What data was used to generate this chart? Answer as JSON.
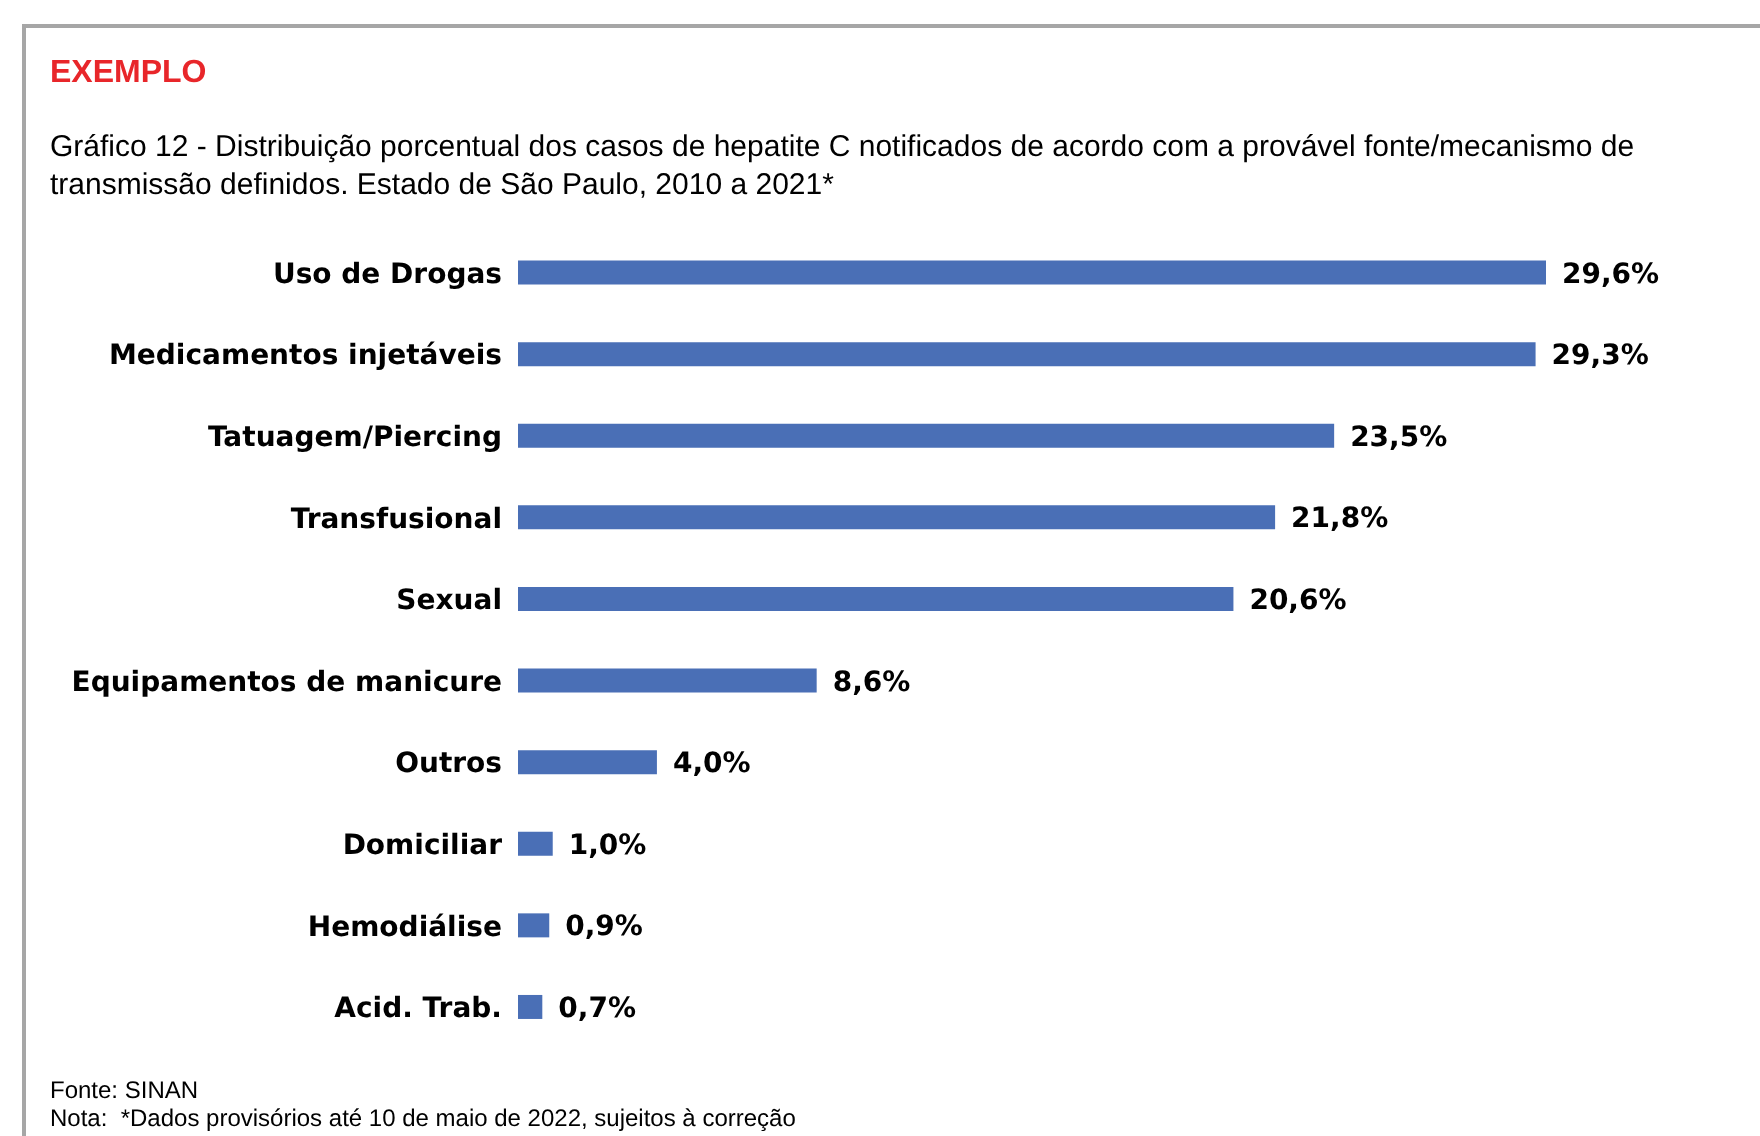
{
  "chart_data": {
    "type": "bar",
    "orientation": "horizontal",
    "title": "Gráfico 12 - Distribuição porcentual dos casos de hepatite C notificados de acordo com a provável fonte/mecanismo de transmissão definidos. Estado de São Paulo, 2010 a 2021*",
    "categories": [
      "Uso de Drogas",
      "Medicamentos injetáveis",
      "Tatuagem/Piercing",
      "Transfusional",
      "Sexual",
      "Equipamentos de manicure",
      "Outros",
      "Domiciliar",
      "Hemodiálise",
      "Acid. Trab."
    ],
    "values": [
      29.6,
      29.3,
      23.5,
      21.8,
      20.6,
      8.6,
      4.0,
      1.0,
      0.9,
      0.7
    ],
    "value_labels": [
      "29,6%",
      "29,3%",
      "23,5%",
      "21,8%",
      "20,6%",
      "8,6%",
      "4,0%",
      "1,0%",
      "0,9%",
      "0,7%"
    ],
    "color": "#4a6fb6",
    "grid": false,
    "legend": false,
    "annotations": [
      "EXEMPLO",
      "Fonte: SINAN",
      "Nota:  *Dados provisórios até 10 de maio de 2022, sujeitos à correção"
    ]
  }
}
